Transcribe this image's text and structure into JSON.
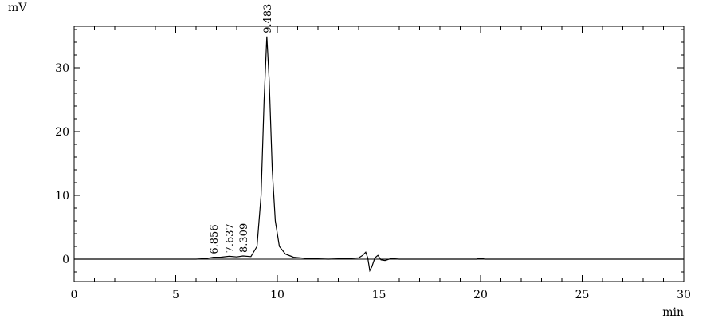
{
  "chart_data": {
    "type": "line",
    "ylabel": "mV",
    "xlabel": "min",
    "xlim": [
      0,
      30
    ],
    "ylim": [
      -3.5,
      36.5
    ],
    "x_ticks": [
      "0",
      "5",
      "10",
      "15",
      "20",
      "25",
      "30"
    ],
    "y_ticks": [
      "0",
      "10",
      "20",
      "30"
    ],
    "x_tick_values": [
      0,
      5,
      10,
      15,
      20,
      25,
      30
    ],
    "y_tick_values": [
      0,
      10,
      20,
      30
    ],
    "grid": false,
    "baseline": 0,
    "peaks": [
      {
        "label": "6.856",
        "rt": 6.856,
        "height": 0.3
      },
      {
        "label": "7.637",
        "rt": 7.637,
        "height": 0.45
      },
      {
        "label": "8.309",
        "rt": 8.309,
        "height": 0.5
      },
      {
        "label": "9.483",
        "rt": 9.483,
        "height": 34.9
      }
    ],
    "series": [
      {
        "x": [
          0,
          5.0,
          6.0,
          6.5,
          6.856,
          7.2,
          7.637,
          8.0,
          8.309,
          8.7,
          9.0,
          9.2,
          9.35,
          9.483,
          9.6,
          9.75,
          9.9,
          10.1,
          10.4,
          10.8,
          11.5,
          12.5,
          13.5,
          14.0,
          14.2,
          14.35,
          14.45,
          14.55,
          14.65,
          14.8,
          14.95,
          15.1,
          15.3,
          15.6,
          16.0,
          19.8,
          20.0,
          20.2,
          30.0
        ],
        "y": [
          0,
          0,
          0,
          0.1,
          0.3,
          0.3,
          0.45,
          0.35,
          0.5,
          0.4,
          2.0,
          10.0,
          25.0,
          34.9,
          28.0,
          14.0,
          6.0,
          2.0,
          0.8,
          0.3,
          0.1,
          0.0,
          0.1,
          0.2,
          0.6,
          1.1,
          0.2,
          -1.8,
          -1.2,
          0.2,
          0.6,
          -0.1,
          -0.2,
          0.1,
          0,
          0,
          0.15,
          0,
          0
        ]
      }
    ]
  }
}
